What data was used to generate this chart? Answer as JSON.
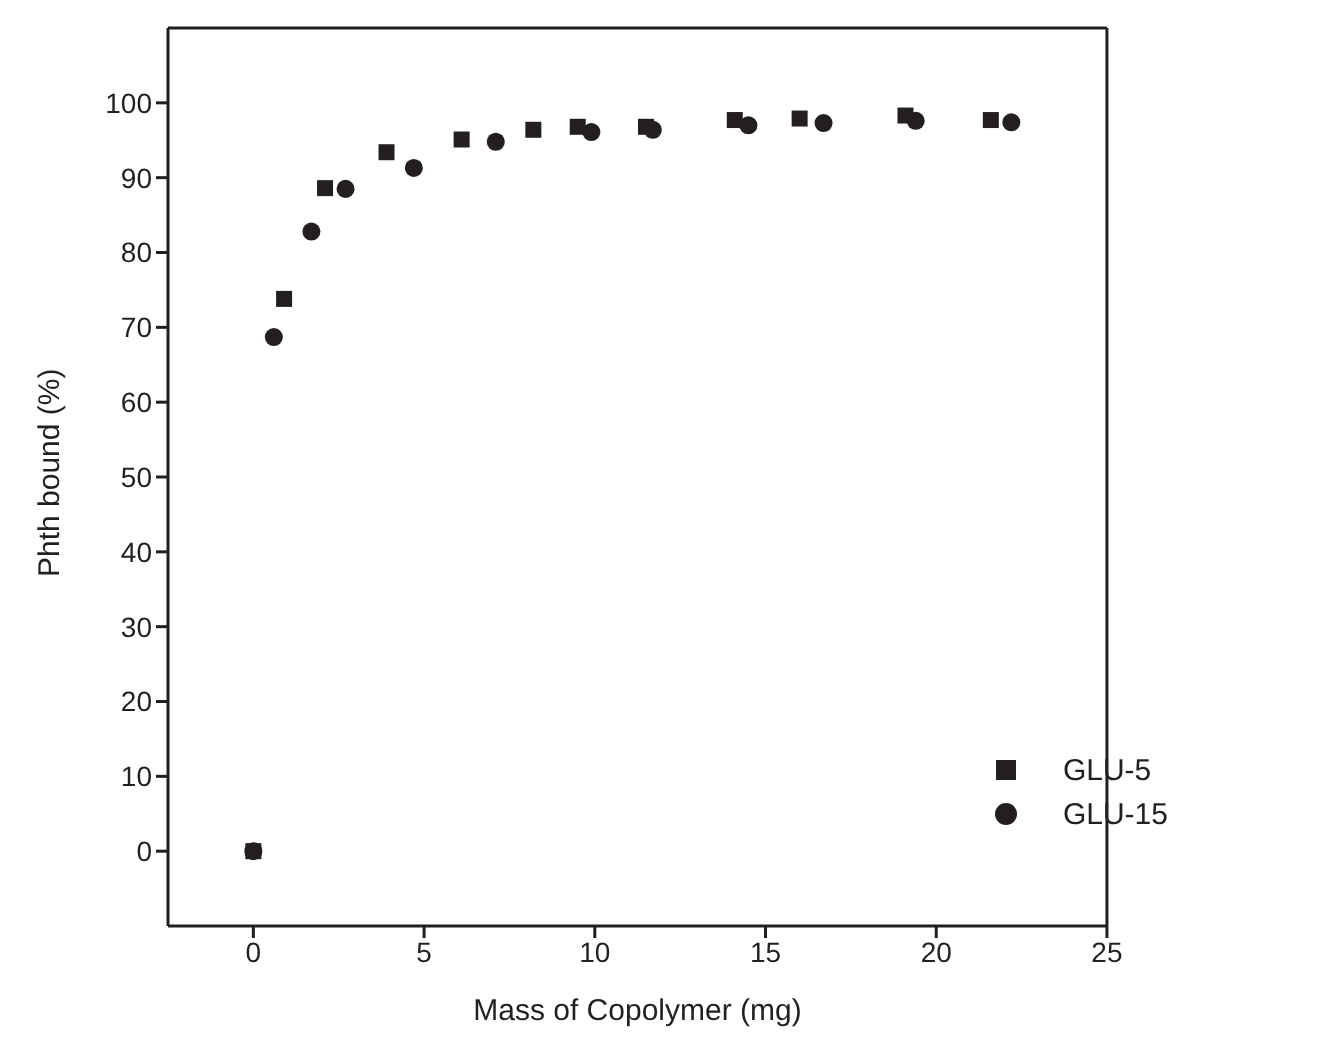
{
  "chart_data": {
    "type": "scatter",
    "xlabel": "Mass of Copolymer (mg)",
    "ylabel": "Phth bound (%)",
    "xlim": [
      -2.5,
      25
    ],
    "xticks": [
      0,
      5,
      10,
      15,
      20,
      25
    ],
    "ylim": [
      -10,
      110
    ],
    "yticks": [
      0,
      10,
      20,
      30,
      40,
      50,
      60,
      70,
      80,
      90,
      100
    ],
    "legend": "bottom right",
    "series": [
      {
        "name": "GLU-5",
        "color": "#231f20",
        "marker": "square",
        "x": [
          0,
          0.9,
          2.1,
          3.9,
          6.1,
          8.2,
          9.5,
          11.5,
          14.1,
          16.0,
          19.1,
          21.6
        ],
        "values": [
          0,
          73.8,
          88.6,
          93.4,
          95.1,
          96.4,
          96.8,
          96.8,
          97.7,
          97.9,
          98.3,
          97.7
        ]
      },
      {
        "name": "GLU-15",
        "color": "#231f20",
        "marker": "circle",
        "x": [
          0,
          0.6,
          1.7,
          2.7,
          4.7,
          7.1,
          9.9,
          11.7,
          14.5,
          16.7,
          19.4,
          22.2
        ],
        "values": [
          0,
          68.7,
          82.8,
          88.5,
          91.3,
          94.8,
          96.1,
          96.4,
          97.0,
          97.3,
          97.6,
          97.4
        ]
      }
    ]
  }
}
